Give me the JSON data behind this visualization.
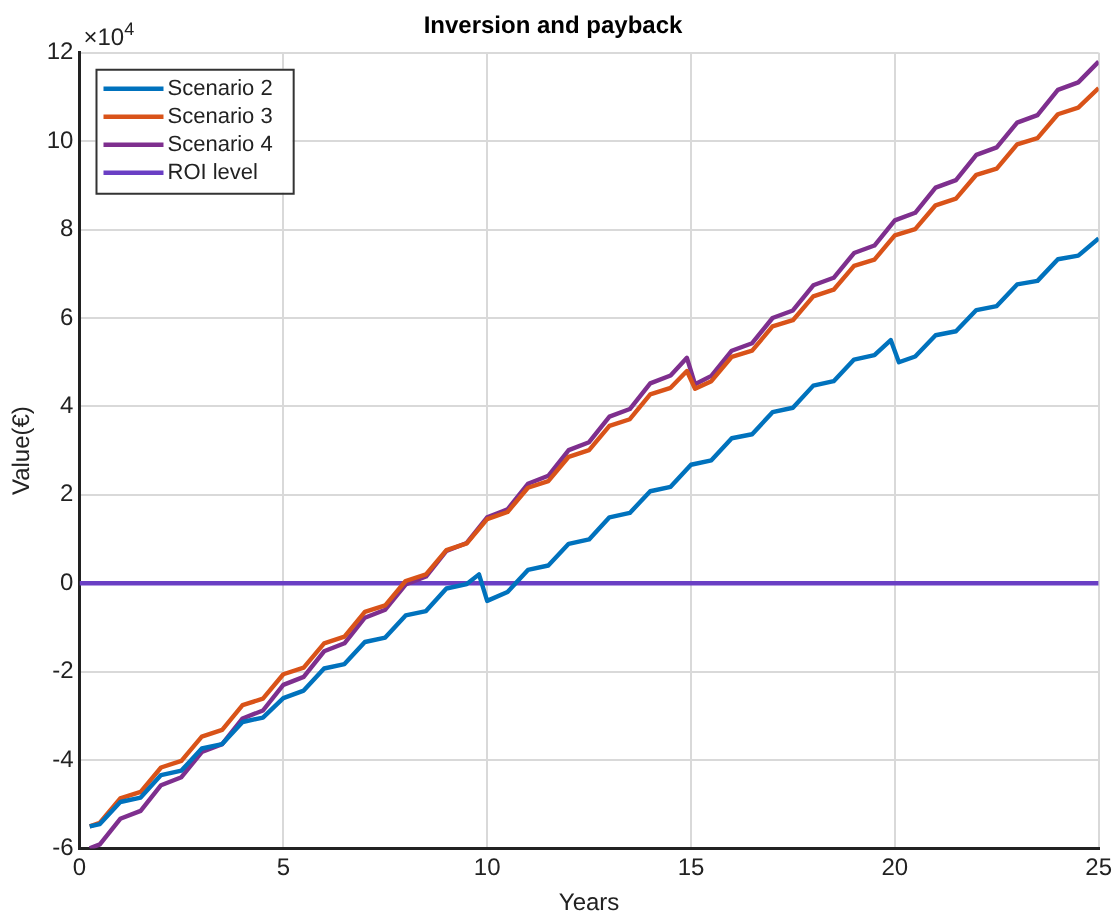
{
  "chart_data": {
    "type": "line",
    "title": "Inversion and payback",
    "xlabel": "Years",
    "ylabel": "Value(€)",
    "annotations": [
      "×10$^{4}$"
    ],
    "xlim": [
      0,
      25
    ],
    "xticks": [
      0,
      5,
      10,
      15,
      20,
      25
    ],
    "ylim": [
      -6,
      12
    ],
    "yticks": [
      -6,
      -4,
      -2,
      0,
      2,
      4,
      6,
      8,
      10,
      12
    ],
    "grid": true,
    "legend": "top left",
    "marker": "none",
    "line_style": "solid",
    "series": [
      {
        "name": "Scenario 2",
        "color": "#0072bd",
        "x": [
          0.25,
          0.5,
          1,
          1.5,
          2,
          2.5,
          3,
          3.5,
          4,
          4.5,
          5,
          5.5,
          6,
          6.5,
          7,
          7.5,
          8,
          8.5,
          9,
          9.5,
          9.8,
          10,
          10.5,
          11,
          11.5,
          12,
          12.5,
          13,
          13.5,
          14,
          14.5,
          15,
          15.5,
          16,
          16.5,
          17,
          17.5,
          18,
          18.5,
          19,
          19.5,
          19.9,
          20.1,
          20.5,
          21,
          21.5,
          22,
          22.5,
          23,
          23.5,
          24,
          24.5,
          25
        ],
        "values": [
          -5.5,
          -5.45,
          -4.95,
          -4.85,
          -4.34,
          -4.24,
          -3.74,
          -3.64,
          -3.14,
          -3.04,
          -2.6,
          -2.43,
          -1.93,
          -1.83,
          -1.33,
          -1.23,
          -0.73,
          -0.63,
          -0.12,
          -0.02,
          0.2,
          -0.4,
          -0.2,
          0.3,
          0.4,
          0.89,
          0.99,
          1.49,
          1.59,
          2.08,
          2.18,
          2.68,
          2.78,
          3.28,
          3.37,
          3.87,
          3.97,
          4.47,
          4.57,
          5.06,
          5.16,
          5.5,
          5.0,
          5.13,
          5.61,
          5.7,
          6.18,
          6.27,
          6.76,
          6.84,
          7.33,
          7.41,
          7.8
        ]
      },
      {
        "name": "Scenario 3",
        "color": "#d95319",
        "x": [
          0.25,
          0.5,
          1,
          1.5,
          2,
          2.5,
          3,
          3.5,
          4,
          4.5,
          5,
          5.5,
          6,
          6.5,
          7,
          7.5,
          8,
          8.5,
          9,
          9.5,
          10,
          10.5,
          11,
          11.5,
          12,
          12.5,
          13,
          13.5,
          14,
          14.5,
          14.9,
          15.1,
          15.5,
          16,
          16.5,
          17,
          17.5,
          18,
          18.5,
          19,
          19.5,
          20,
          20.5,
          21,
          21.5,
          22,
          22.5,
          23,
          23.5,
          24,
          24.5,
          25
        ],
        "values": [
          -5.5,
          -5.42,
          -4.87,
          -4.72,
          -4.17,
          -4.02,
          -3.47,
          -3.32,
          -2.76,
          -2.61,
          -2.06,
          -1.91,
          -1.36,
          -1.21,
          -0.65,
          -0.5,
          0.05,
          0.2,
          0.75,
          0.9,
          1.45,
          1.61,
          2.16,
          2.31,
          2.86,
          3.01,
          3.56,
          3.71,
          4.27,
          4.42,
          4.8,
          4.4,
          4.57,
          5.12,
          5.26,
          5.81,
          5.95,
          6.49,
          6.64,
          7.18,
          7.32,
          7.87,
          8.01,
          8.55,
          8.7,
          9.24,
          9.38,
          9.93,
          10.07,
          10.61,
          10.76,
          11.2
        ]
      },
      {
        "name": "Scenario 4",
        "color": "#7e2f8e",
        "x": [
          0.25,
          0.5,
          1,
          1.5,
          2,
          2.5,
          3,
          3.5,
          4,
          4.5,
          5,
          5.5,
          6,
          6.5,
          7,
          7.5,
          8,
          8.5,
          9,
          9.5,
          10,
          10.5,
          11,
          11.5,
          12,
          12.5,
          13,
          13.5,
          14,
          14.5,
          14.9,
          15.1,
          15.5,
          16,
          16.5,
          17,
          17.5,
          18,
          18.5,
          19,
          19.5,
          20,
          20.5,
          21,
          21.5,
          22,
          22.5,
          23,
          23.5,
          24,
          24.5,
          25
        ],
        "values": [
          -6.0,
          -5.91,
          -5.33,
          -5.15,
          -4.57,
          -4.39,
          -3.82,
          -3.64,
          -3.06,
          -2.88,
          -2.3,
          -2.12,
          -1.54,
          -1.36,
          -0.78,
          -0.6,
          -0.03,
          0.15,
          0.73,
          0.91,
          1.49,
          1.67,
          2.25,
          2.43,
          3.01,
          3.19,
          3.77,
          3.94,
          4.52,
          4.7,
          5.1,
          4.5,
          4.69,
          5.26,
          5.43,
          6.0,
          6.17,
          6.74,
          6.91,
          7.47,
          7.64,
          8.21,
          8.38,
          8.95,
          9.12,
          9.69,
          9.86,
          10.42,
          10.59,
          11.16,
          11.33,
          11.8
        ]
      },
      {
        "name": "ROI level",
        "color": "#6a3fc4",
        "x": [
          0,
          25
        ],
        "values": [
          0,
          0
        ]
      }
    ]
  }
}
